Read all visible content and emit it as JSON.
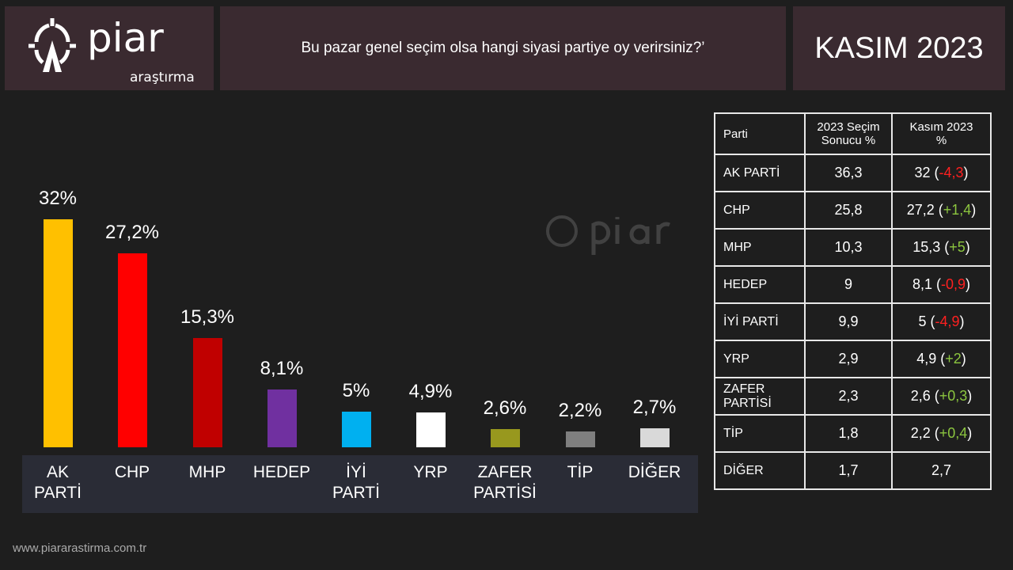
{
  "header": {
    "logo_main": "piar",
    "logo_sub": "araştırma",
    "question": "Bu pazar genel seçim olsa hangi siyasi partiye oy verirsiniz?’",
    "date": "KASIM 2023"
  },
  "footer": {
    "url": "www.piararastirma.com.tr"
  },
  "chart_data": {
    "type": "bar",
    "categories": [
      "AK PARTİ",
      "CHP",
      "MHP",
      "HEDEP",
      "İYİ PARTİ",
      "YRP",
      "ZAFER PARTİSİ",
      "TİP",
      "DİĞER"
    ],
    "values": [
      32,
      27.2,
      15.3,
      8.1,
      5,
      4.9,
      2.6,
      2.2,
      2.7
    ],
    "labels": [
      "32%",
      "27,2%",
      "15,3%",
      "8,1%",
      "5%",
      "4,9%",
      "2,6%",
      "2,2%",
      "2,7%"
    ],
    "colors": [
      "#ffc000",
      "#ff0000",
      "#c00000",
      "#7030a0",
      "#00b0f0",
      "#ffffff",
      "#98981e",
      "#7f7f7f",
      "#d9d9d9"
    ],
    "cat_lines": [
      [
        "AK",
        "PARTİ"
      ],
      [
        "CHP"
      ],
      [
        "MHP"
      ],
      [
        "HEDEP"
      ],
      [
        "İYİ",
        "PARTİ"
      ],
      [
        "YRP"
      ],
      [
        "ZAFER",
        "PARTİSİ"
      ],
      [
        "TİP"
      ],
      [
        "DİĞER"
      ]
    ],
    "title": "",
    "xlabel": "",
    "ylabel": "",
    "ylim": [
      0,
      32
    ],
    "grid": false
  },
  "table": {
    "headers": [
      [
        "Parti"
      ],
      [
        "2023 Seçim",
        "Sonucu %"
      ],
      [
        "Kasım 2023",
        "%"
      ]
    ],
    "rows": [
      {
        "party": "AK PARTİ",
        "prev": "36,3",
        "now": "32",
        "diff": "-4,3",
        "sign": "neg"
      },
      {
        "party": "CHP",
        "prev": "25,8",
        "now": "27,2",
        "diff": "+1,4",
        "sign": "pos"
      },
      {
        "party": "MHP",
        "prev": "10,3",
        "now": "15,3",
        "diff": "+5",
        "sign": "pos"
      },
      {
        "party": "HEDEP",
        "prev": "9",
        "now": "8,1",
        "diff": "-0,9",
        "sign": "neg"
      },
      {
        "party": "İYİ PARTİ",
        "prev": "9,9",
        "now": "5",
        "diff": "-4,9",
        "sign": "neg"
      },
      {
        "party": "YRP",
        "prev": "2,9",
        "now": "4,9",
        "diff": "+2",
        "sign": "pos"
      },
      {
        "party": "ZAFER PARTİSİ",
        "prev": "2,3",
        "now": "2,6",
        "diff": "+0,3",
        "sign": "pos"
      },
      {
        "party": "TİP",
        "prev": "1,8",
        "now": "2,2",
        "diff": "+0,4",
        "sign": "pos"
      },
      {
        "party": "DİĞER",
        "prev": "1,7",
        "now": "2,7",
        "diff": "",
        "sign": ""
      }
    ]
  }
}
